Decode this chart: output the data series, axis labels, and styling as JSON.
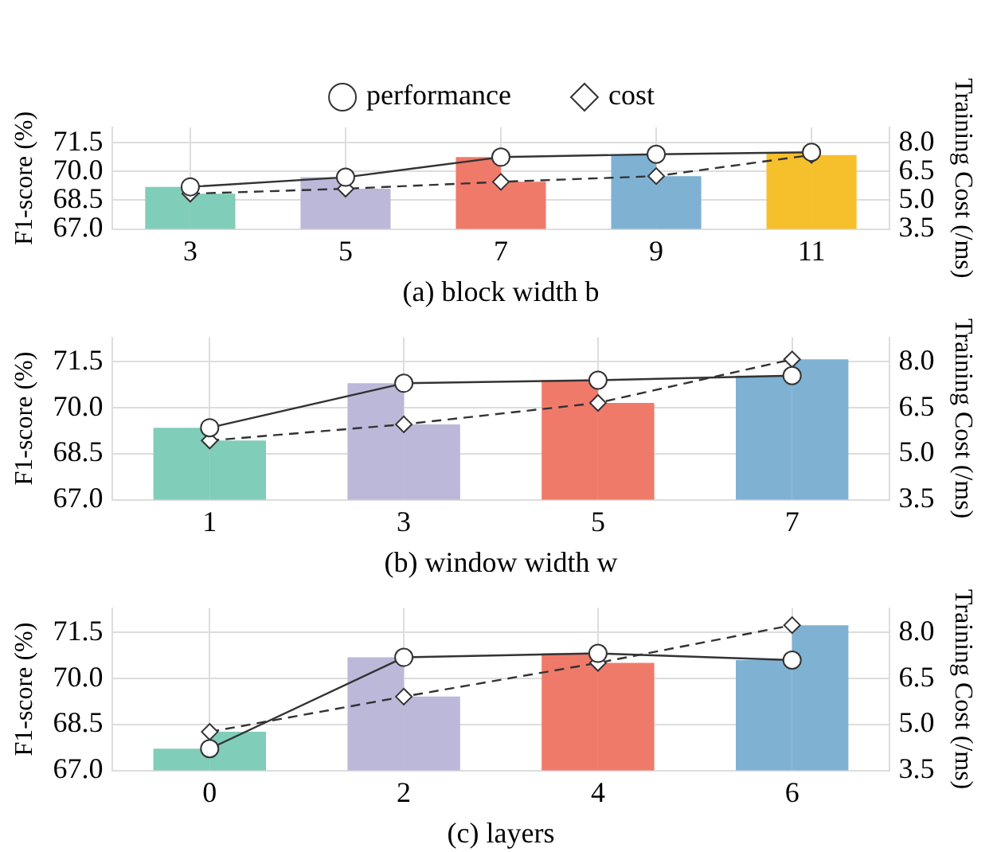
{
  "chart_data": [
    {
      "type": "bar",
      "xlabel": "(a) block width b",
      "ylabel": "F1-score (%)",
      "y2label": "Training Cost (/ms)",
      "categories": [
        "3",
        "5",
        "7",
        "9",
        "11"
      ],
      "ylim": [
        67,
        72.3
      ],
      "yticks": [
        {
          "value": 67,
          "label": "67.0"
        },
        {
          "value": 68.5,
          "label": "68.5"
        },
        {
          "value": 70,
          "label": "70.0"
        },
        {
          "value": 71.5,
          "label": "71.5"
        }
      ],
      "y2lim": [
        3.5,
        8.8
      ],
      "y2ticks": [
        {
          "value": 3.5,
          "label": "3.5"
        },
        {
          "value": 5,
          "label": "5.0"
        },
        {
          "value": 6.5,
          "label": "6.5"
        },
        {
          "value": 8,
          "label": "8.0"
        }
      ],
      "grid": true,
      "legend": "top",
      "series": [
        {
          "colors": [
            "#80cdb9",
            "#bcb8d9",
            "#f07a6a",
            "#7fb1d3",
            "#f5c02c"
          ],
          "values": [
            69.2,
            69.7,
            70.75,
            70.9,
            71.0
          ]
        },
        {
          "axis": "y2",
          "colors": [
            "#80cdb9",
            "#bcb8d9",
            "#f07a6a",
            "#7fb1d3",
            "#f5c02c"
          ],
          "values": [
            5.34,
            5.6,
            5.96,
            6.26,
            7.36
          ]
        },
        {
          "type": "line",
          "name": "performance",
          "color": "#333333",
          "marker": "circle",
          "line_style": "solid",
          "values": [
            69.2,
            69.7,
            70.75,
            70.9,
            71.0
          ]
        },
        {
          "type": "line",
          "name": "cost",
          "axis": "y2",
          "color": "#333333",
          "marker": "diamond",
          "line_style": "dashed",
          "values": [
            5.34,
            5.6,
            5.96,
            6.26,
            7.36
          ]
        }
      ]
    },
    {
      "type": "bar",
      "xlabel": "(b) window width w",
      "ylabel": "F1-score (%)",
      "y2label": "Training Cost (/ms)",
      "categories": [
        "1",
        "3",
        "5",
        "7"
      ],
      "ylim": [
        67,
        72.3
      ],
      "yticks": [
        {
          "value": 67,
          "label": "67.0"
        },
        {
          "value": 68.5,
          "label": "68.5"
        },
        {
          "value": 70,
          "label": "70.0"
        },
        {
          "value": 71.5,
          "label": "71.5"
        }
      ],
      "y2lim": [
        3.5,
        8.8
      ],
      "y2ticks": [
        {
          "value": 3.5,
          "label": "3.5"
        },
        {
          "value": 5,
          "label": "5.0"
        },
        {
          "value": 6.5,
          "label": "6.5"
        },
        {
          "value": 8,
          "label": "8.0"
        }
      ],
      "grid": true,
      "series": [
        {
          "colors": [
            "#80cdb9",
            "#bcb8d9",
            "#f07a6a",
            "#7fb1d3"
          ],
          "values": [
            69.35,
            70.8,
            70.9,
            71.05
          ]
        },
        {
          "axis": "y2",
          "colors": [
            "#80cdb9",
            "#bcb8d9",
            "#f07a6a",
            "#7fb1d3"
          ],
          "values": [
            5.43,
            5.96,
            6.66,
            8.08
          ]
        },
        {
          "type": "line",
          "color": "#333333",
          "marker": "circle",
          "line_style": "solid",
          "values": [
            69.35,
            70.8,
            70.9,
            71.05
          ]
        },
        {
          "type": "line",
          "axis": "y2",
          "color": "#333333",
          "marker": "diamond",
          "line_style": "dashed",
          "values": [
            5.43,
            5.96,
            6.66,
            8.08
          ]
        }
      ]
    },
    {
      "type": "bar",
      "xlabel": "(c) layers",
      "ylabel": "F1-score (%)",
      "y2label": "Training Cost (/ms)",
      "categories": [
        "0",
        "2",
        "4",
        "6"
      ],
      "ylim": [
        67,
        72.3
      ],
      "yticks": [
        {
          "value": 67,
          "label": "67.0"
        },
        {
          "value": 68.5,
          "label": "68.5"
        },
        {
          "value": 70,
          "label": "70.0"
        },
        {
          "value": 71.5,
          "label": "71.5"
        }
      ],
      "y2lim": [
        3.5,
        8.8
      ],
      "y2ticks": [
        {
          "value": 3.5,
          "label": "3.5"
        },
        {
          "value": 5,
          "label": "5.0"
        },
        {
          "value": 6.5,
          "label": "6.5"
        },
        {
          "value": 8,
          "label": "8.0"
        }
      ],
      "grid": true,
      "series": [
        {
          "colors": [
            "#80cdb9",
            "#bcb8d9",
            "#f07a6a",
            "#7fb1d3"
          ],
          "values": [
            67.71,
            70.69,
            70.82,
            70.6
          ]
        },
        {
          "axis": "y2",
          "colors": [
            "#80cdb9",
            "#bcb8d9",
            "#f07a6a",
            "#7fb1d3"
          ],
          "values": [
            4.76,
            5.91,
            7.01,
            8.24
          ]
        },
        {
          "type": "line",
          "color": "#333333",
          "marker": "circle",
          "line_style": "solid",
          "values": [
            67.71,
            70.69,
            70.82,
            70.6
          ]
        },
        {
          "type": "line",
          "axis": "y2",
          "color": "#333333",
          "marker": "diamond",
          "line_style": "dashed",
          "values": [
            4.76,
            5.91,
            7.01,
            8.24
          ]
        }
      ]
    }
  ]
}
